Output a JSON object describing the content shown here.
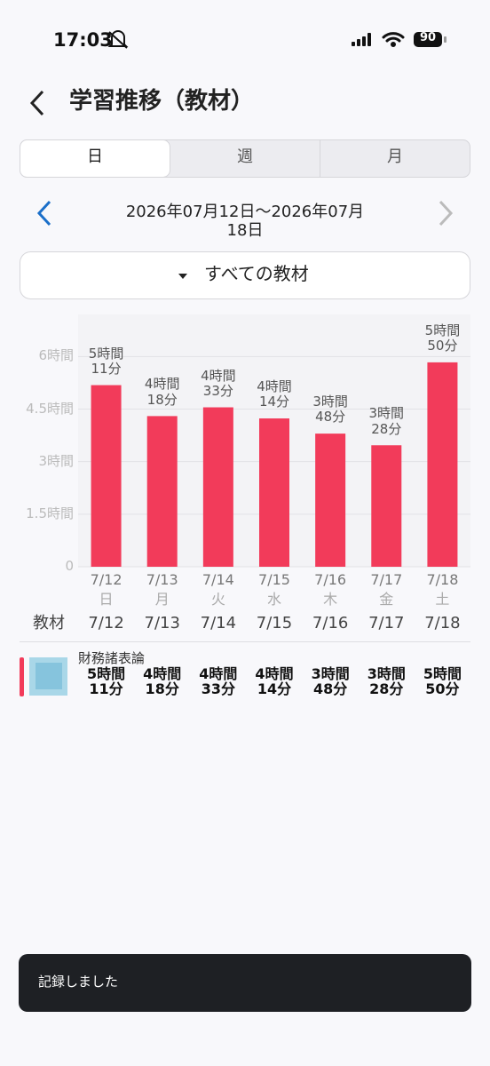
{
  "status_bar": {
    "time": "17:03",
    "battery": "90"
  },
  "header": {
    "title": "学習推移（教材）"
  },
  "tabs": [
    "日",
    "週",
    "月"
  ],
  "date_range": "2026年07月12日〜2026年07月18日",
  "filter": "すべての教材",
  "chart_data": {
    "type": "bar",
    "categories": [
      "7/12",
      "7/13",
      "7/14",
      "7/15",
      "7/16",
      "7/17",
      "7/18"
    ],
    "weekdays": [
      "日",
      "月",
      "火",
      "水",
      "木",
      "金",
      "土"
    ],
    "values": [
      5.1833,
      4.3,
      4.55,
      4.2333,
      3.8,
      3.4667,
      5.8333
    ],
    "value_labels": [
      "5時間\n11分",
      "4時間\n18分",
      "4時間\n33分",
      "4時間\n14分",
      "3時間\n48分",
      "3時間\n28分",
      "5時間\n50分"
    ],
    "color": "#f23b5a",
    "ylim": [
      0,
      7.2
    ],
    "yticks": [
      0,
      {
        "value": 1.5,
        "label": "1.5時間"
      },
      {
        "value": 3,
        "label": "3時間"
      },
      {
        "value": 4.5,
        "label": "4.5時間"
      },
      {
        "value": 6,
        "label": "6時間"
      }
    ],
    "grid": true
  },
  "table": {
    "header": [
      "教材",
      "7/12",
      "7/13",
      "7/14",
      "7/15",
      "7/16",
      "7/17",
      "7/18"
    ],
    "rows": [
      [
        "財務諸表論",
        "5時間\n11分",
        "4時間\n18分",
        "4時間\n33分",
        "4時間\n14分",
        "3時間\n48分",
        "3時間\n28分",
        "5時間\n50分"
      ]
    ]
  },
  "toast": "記録しました"
}
